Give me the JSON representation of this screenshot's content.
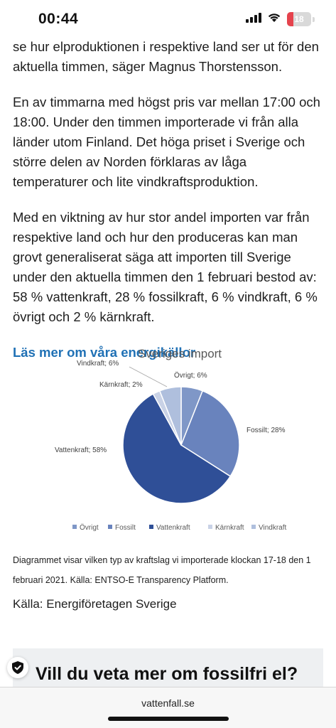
{
  "status_bar": {
    "time": "00:44",
    "battery_level": "18",
    "icons": [
      "signal-icon",
      "wifi-icon",
      "battery-icon"
    ]
  },
  "article": {
    "paragraph_1": "se hur elproduktionen i respektive land ser ut för den aktuella timmen, säger Magnus Thorstensson.",
    "paragraph_2": "En av timmarna med högst pris var mellan 17:00 och 18:00. Under den timmen importerade vi från alla länder utom Finland. Det höga priset i Sverige och större delen av Norden förklaras av låga temperaturer och lite vindkraftsproduktion.",
    "paragraph_3": "Med en viktning av hur stor andel importen var från respektive land och hur den produceras kan man grovt generaliserat säga att importen till Sverige under den aktuella timmen den 1 februari bestod av: 58 % vattenkraft, 28 % fossilkraft, 6 % vindkraft, 6 % övrigt och 2 % kärnkraft.",
    "read_more_link": "Läs mer om våra energikällor",
    "chart_caption": "Diagrammet visar vilken typ av kraftslag vi importerade klockan 17-18 den 1 februari 2021. Källa: ENTSO-E Transparency Platform.",
    "source": "Källa: Energiföretagen Sverige"
  },
  "chart_data": {
    "type": "pie",
    "title": "Sveriges import",
    "categories": [
      "Övrigt",
      "Fossilt",
      "Vattenkraft",
      "Kärnkraft",
      "Vindkraft"
    ],
    "values": [
      6,
      28,
      58,
      2,
      6
    ],
    "slice_labels": [
      "Övrigt; 6%",
      "Fossilt; 28%",
      "Vattenkraft; 58%",
      "Kärnkraft; 2%",
      "Vindkraft; 6%"
    ],
    "colors": [
      "#7f97c7",
      "#6983bd",
      "#2f4f97",
      "#c9d2e6",
      "#afbfdd"
    ],
    "legend_position": "bottom"
  },
  "promo": {
    "title": "Vill du veta mer om fossilfri el?"
  },
  "browser": {
    "url": "vattenfall.se"
  }
}
